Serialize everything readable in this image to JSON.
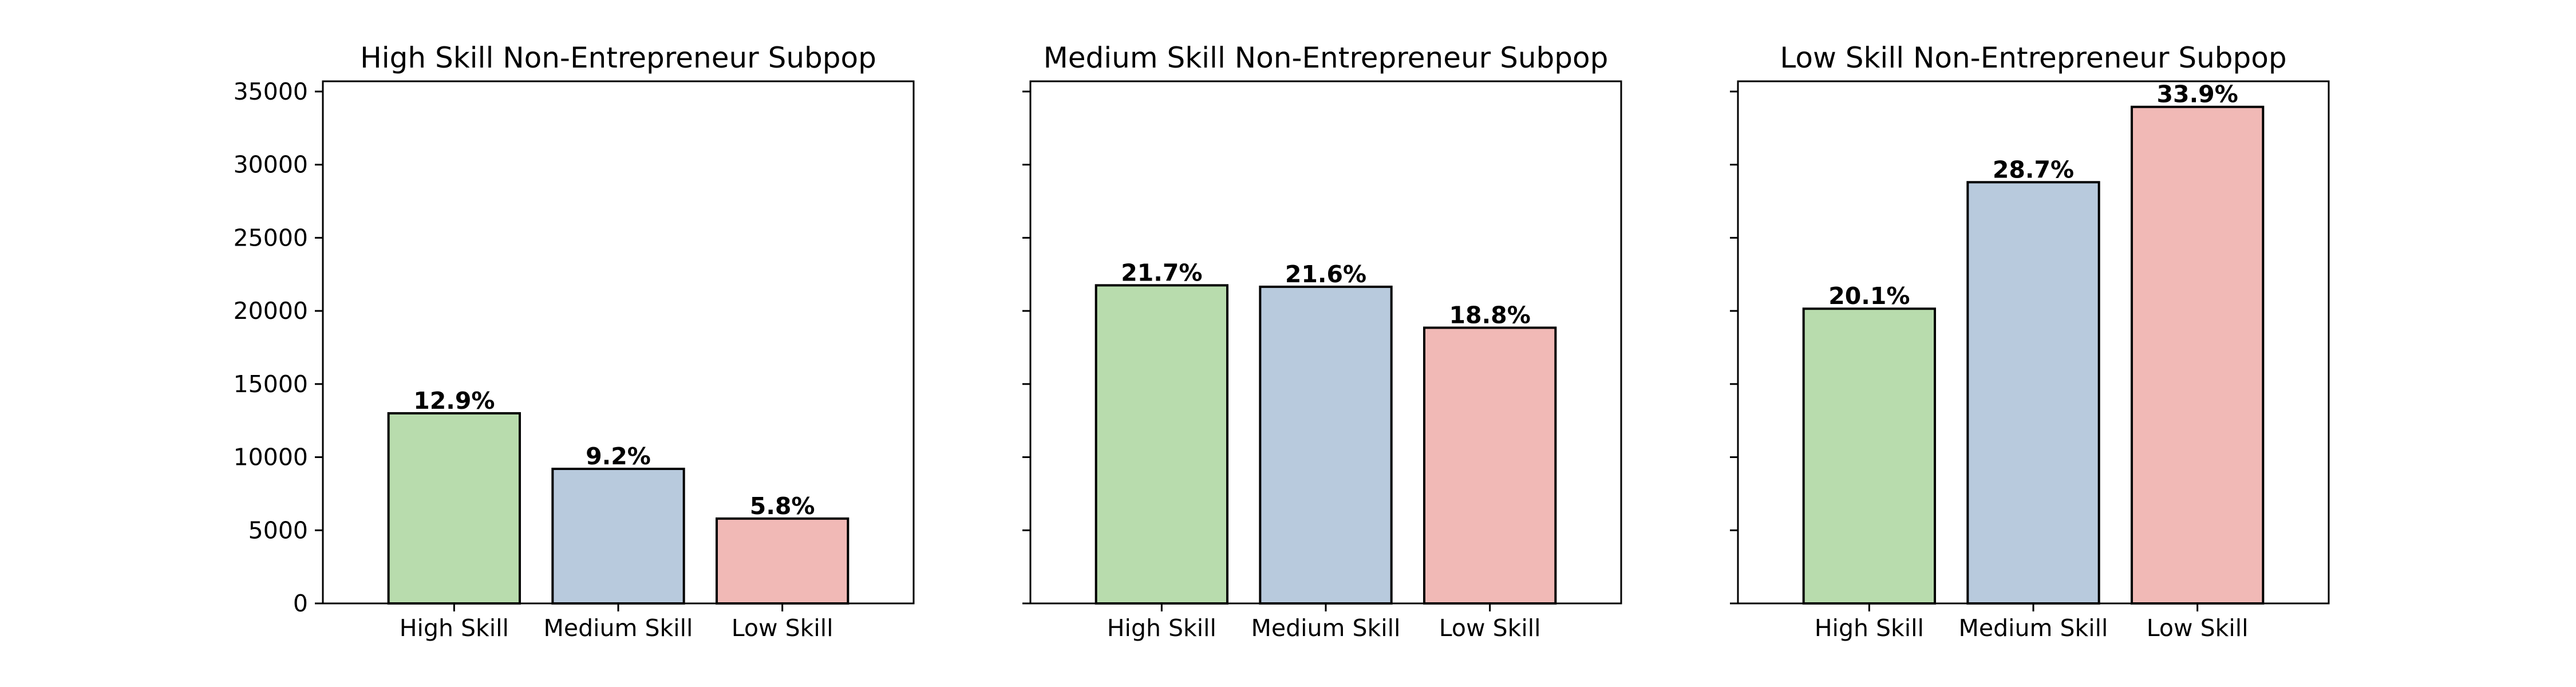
{
  "chart_data": [
    {
      "type": "bar",
      "title": "High Skill Non-Entrepreneur Subpop",
      "categories": [
        "High Skill",
        "Medium Skill",
        "Low Skill"
      ],
      "values": [
        13000,
        9200,
        5800
      ],
      "bar_labels": [
        "12.9%",
        "9.2%",
        "5.8%"
      ],
      "colors": [
        "#b8dcad",
        "#b8cadd",
        "#f1b9b6"
      ],
      "ylim": [
        0,
        35700
      ],
      "yticks": [
        0,
        5000,
        10000,
        15000,
        20000,
        25000,
        30000,
        35000
      ],
      "ytick_labels": [
        "0",
        "5000",
        "10000",
        "15000",
        "20000",
        "25000",
        "30000",
        "35000"
      ],
      "grid": false
    },
    {
      "type": "bar",
      "title": "Medium Skill Non-Entrepreneur Subpop",
      "categories": [
        "High Skill",
        "Medium Skill",
        "Low Skill"
      ],
      "values": [
        21750,
        21650,
        18850
      ],
      "bar_labels": [
        "21.7%",
        "21.6%",
        "18.8%"
      ],
      "colors": [
        "#b8dcad",
        "#b8cadd",
        "#f1b9b6"
      ],
      "ylim": [
        0,
        35700
      ],
      "yticks": [
        0,
        5000,
        10000,
        15000,
        20000,
        25000,
        30000,
        35000
      ],
      "grid": false
    },
    {
      "type": "bar",
      "title": "Low Skill Non-Entrepreneur Subpop",
      "categories": [
        "High Skill",
        "Medium Skill",
        "Low Skill"
      ],
      "values": [
        20150,
        28800,
        33950
      ],
      "bar_labels": [
        "20.1%",
        "28.7%",
        "33.9%"
      ],
      "colors": [
        "#b8dcad",
        "#b8cadd",
        "#f1b9b6"
      ],
      "ylim": [
        0,
        35700
      ],
      "yticks": [
        0,
        5000,
        10000,
        15000,
        20000,
        25000,
        30000,
        35000
      ],
      "grid": false
    }
  ]
}
